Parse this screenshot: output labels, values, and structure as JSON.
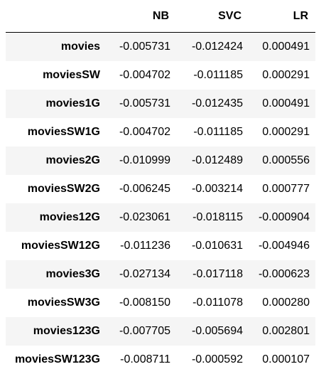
{
  "table": {
    "columns": [
      "",
      "NB",
      "SVC",
      "LR"
    ],
    "rows": [
      {
        "name": "movies",
        "NB": "-0.005731",
        "SVC": "-0.012424",
        "LR": "0.000491"
      },
      {
        "name": "moviesSW",
        "NB": "-0.004702",
        "SVC": "-0.011185",
        "LR": "0.000291"
      },
      {
        "name": "movies1G",
        "NB": "-0.005731",
        "SVC": "-0.012435",
        "LR": "0.000491"
      },
      {
        "name": "moviesSW1G",
        "NB": "-0.004702",
        "SVC": "-0.011185",
        "LR": "0.000291"
      },
      {
        "name": "movies2G",
        "NB": "-0.010999",
        "SVC": "-0.012489",
        "LR": "0.000556"
      },
      {
        "name": "moviesSW2G",
        "NB": "-0.006245",
        "SVC": "-0.003214",
        "LR": "0.000777"
      },
      {
        "name": "movies12G",
        "NB": "-0.023061",
        "SVC": "-0.018115",
        "LR": "-0.000904"
      },
      {
        "name": "moviesSW12G",
        "NB": "-0.011236",
        "SVC": "-0.010631",
        "LR": "-0.004946"
      },
      {
        "name": "movies3G",
        "NB": "-0.027134",
        "SVC": "-0.017118",
        "LR": "-0.000623"
      },
      {
        "name": "moviesSW3G",
        "NB": "-0.008150",
        "SVC": "-0.011078",
        "LR": "0.000280"
      },
      {
        "name": "movies123G",
        "NB": "-0.007705",
        "SVC": "-0.005694",
        "LR": "0.002801"
      },
      {
        "name": "moviesSW123G",
        "NB": "-0.008711",
        "SVC": "-0.000592",
        "LR": "0.000107"
      }
    ]
  }
}
